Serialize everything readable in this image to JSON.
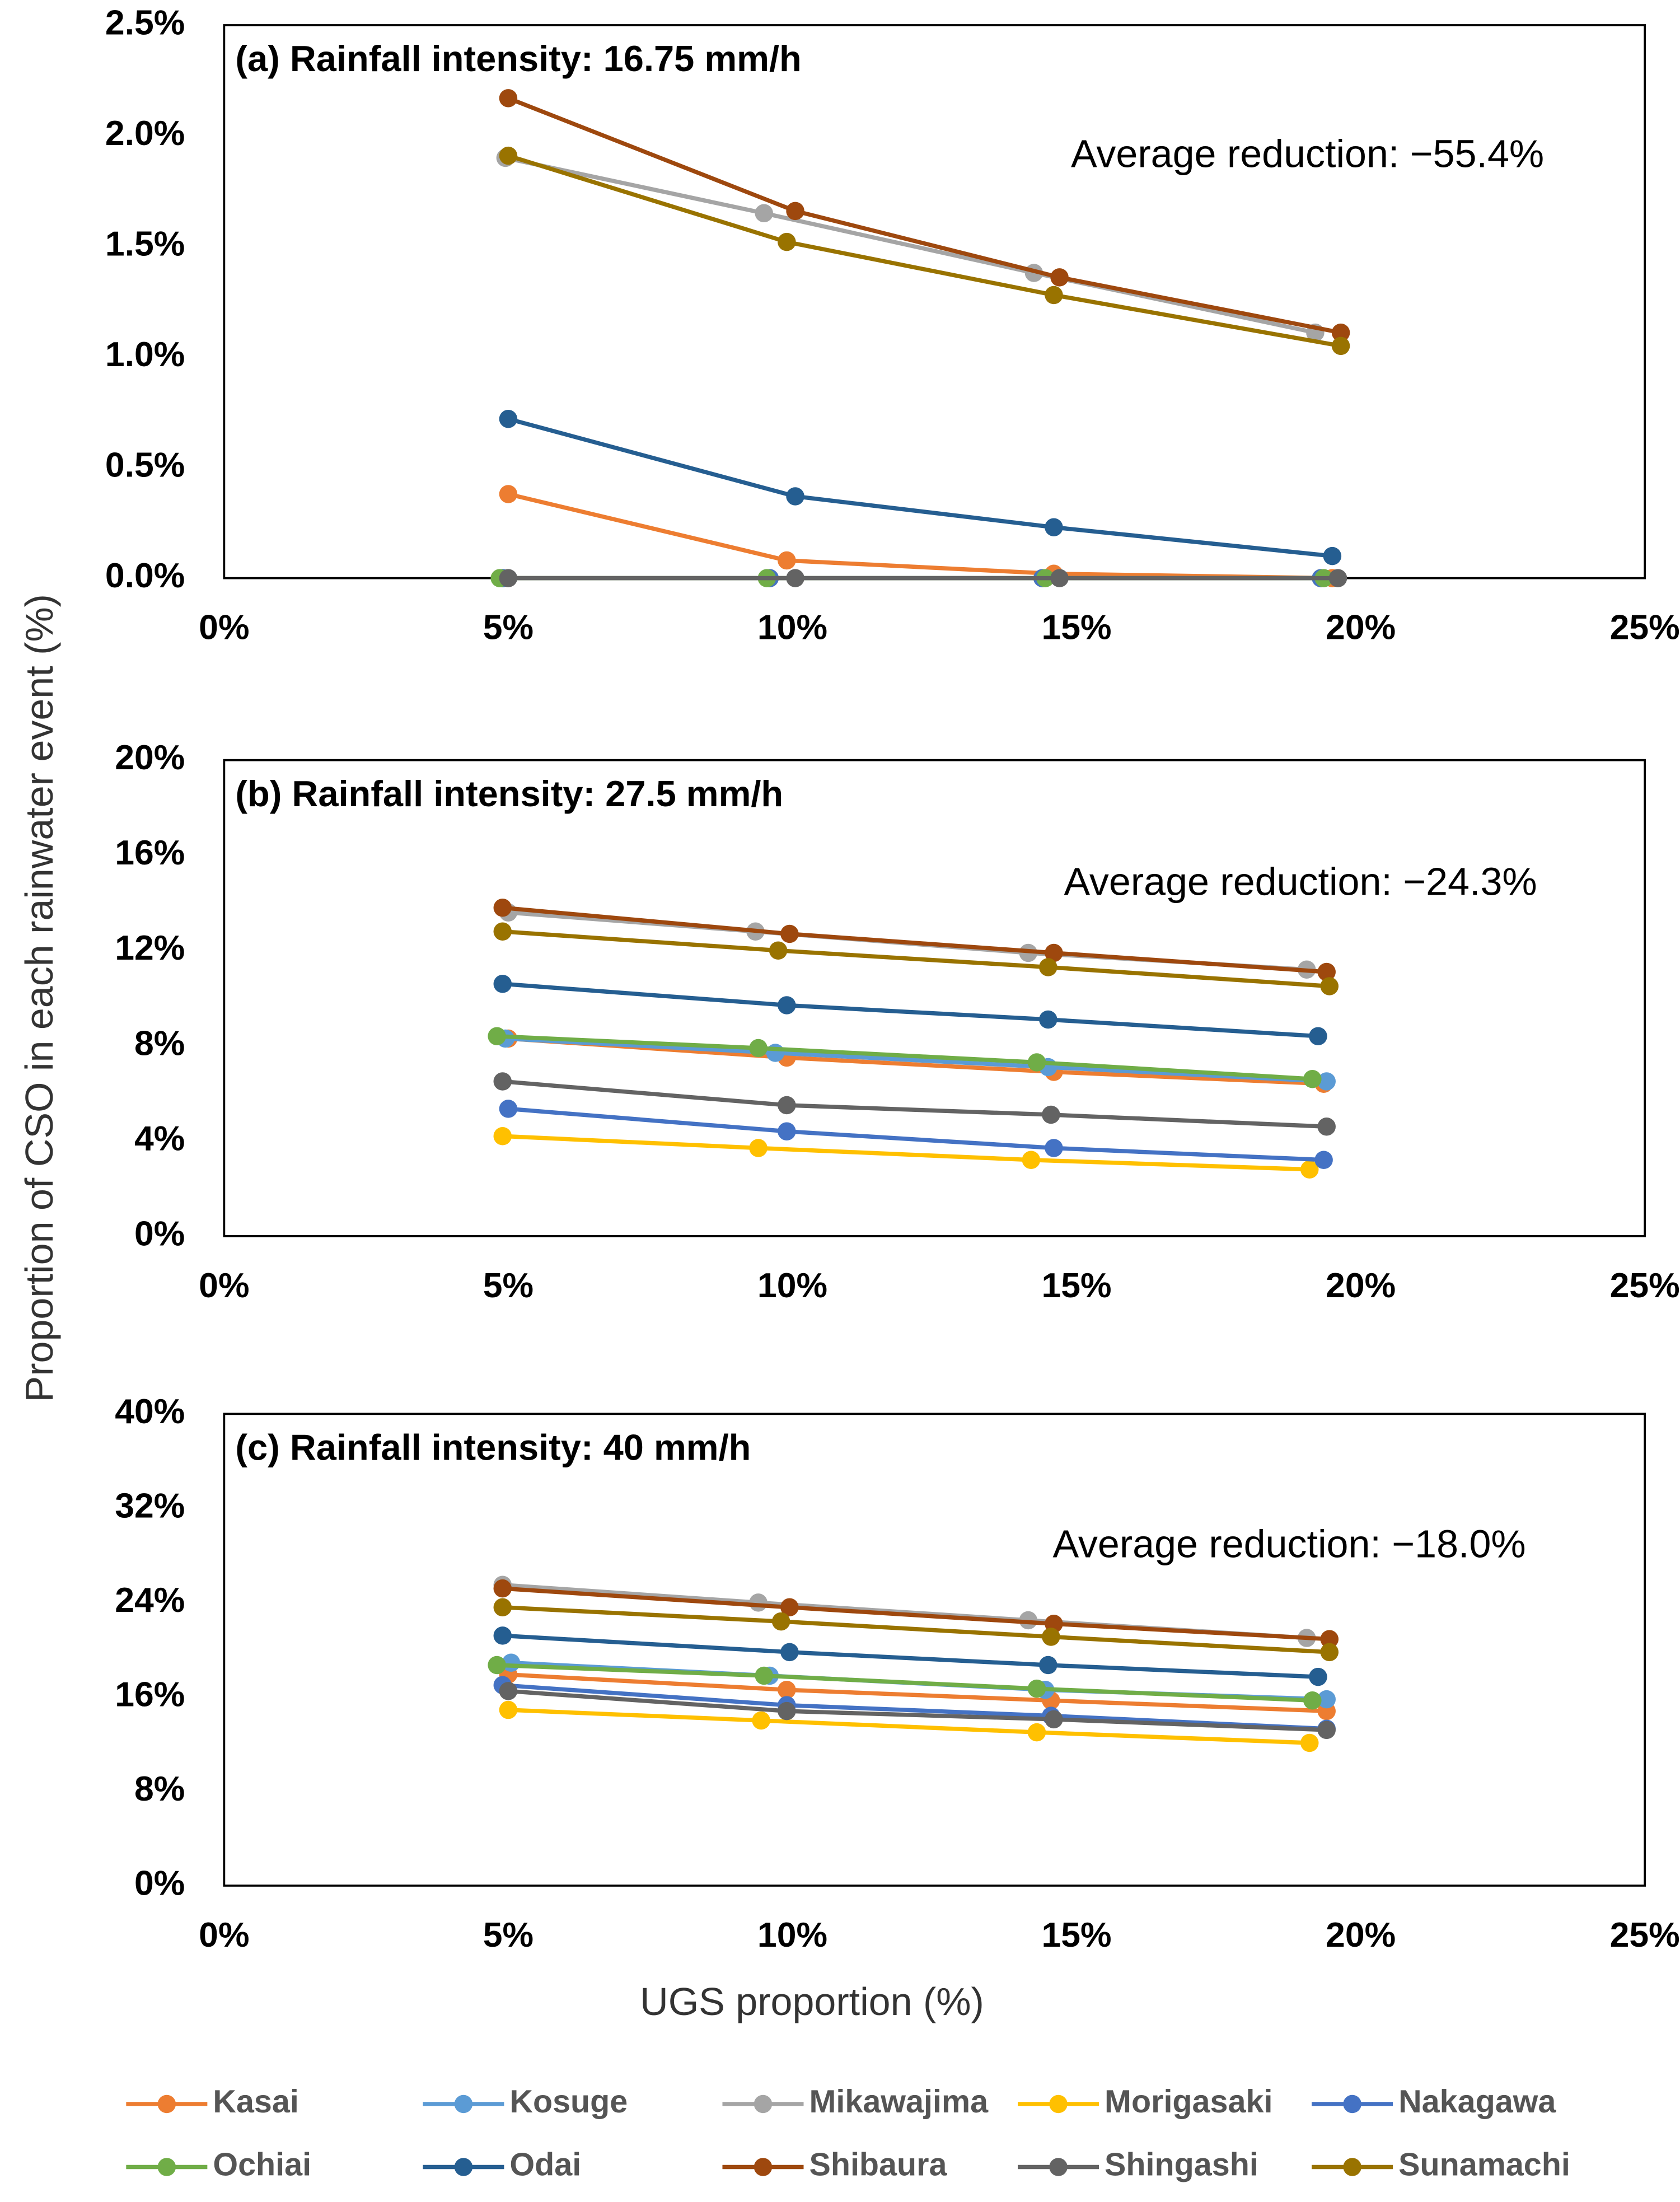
{
  "chart_data": [
    {
      "type": "line",
      "title": "(a) Rainfall intensity: 16.75 mm/h",
      "annotation": "Average reduction: −55.4%",
      "xlim": [
        0,
        25
      ],
      "xticks": [
        {
          "value": 0,
          "label": "0%"
        },
        {
          "value": 5,
          "label": "5%"
        },
        {
          "value": 10,
          "label": "10%"
        },
        {
          "value": 15,
          "label": "15%"
        },
        {
          "value": 20,
          "label": "20%"
        },
        {
          "value": 25,
          "label": "25%"
        }
      ],
      "ylim": [
        0,
        2.5
      ],
      "yticks": [
        {
          "value": 0,
          "label": "0.0%"
        },
        {
          "value": 0.5,
          "label": "0.5%"
        },
        {
          "value": 1,
          "label": "1.0%"
        },
        {
          "value": 1.5,
          "label": "1.5%"
        },
        {
          "value": 2,
          "label": "2.0%"
        },
        {
          "value": 2.5,
          "label": "2.5%"
        }
      ],
      "series": [
        {
          "color": "#ed7d31",
          "x": [
            5.0,
            9.9,
            14.6,
            19.5
          ],
          "values": [
            0.38,
            0.08,
            0.02,
            0.0
          ]
        },
        {
          "color": "#5b9bd5",
          "x": [
            4.9,
            9.6,
            14.4,
            19.3
          ],
          "values": [
            0,
            0,
            0,
            0
          ]
        },
        {
          "color": "#a5a5a5",
          "x": [
            4.95,
            9.5,
            14.25,
            19.2
          ],
          "values": [
            1.9,
            1.65,
            1.38,
            1.11
          ]
        },
        {
          "color": "#ffc000",
          "x": [
            4.9,
            9.6,
            14.4,
            19.3
          ],
          "values": [
            0,
            0,
            0,
            0
          ]
        },
        {
          "color": "#4472c4",
          "x": [
            4.9,
            9.6,
            14.4,
            19.3
          ],
          "values": [
            0,
            0,
            0,
            0
          ]
        },
        {
          "color": "#70ad47",
          "x": [
            4.85,
            9.55,
            14.45,
            19.35
          ],
          "values": [
            0,
            0,
            0,
            0
          ]
        },
        {
          "color": "#255e91",
          "x": [
            5.0,
            10.05,
            14.6,
            19.5
          ],
          "values": [
            0.72,
            0.37,
            0.23,
            0.1
          ]
        },
        {
          "color": "#9e480e",
          "x": [
            5.0,
            10.05,
            14.7,
            19.65
          ],
          "values": [
            2.17,
            1.66,
            1.36,
            1.11
          ]
        },
        {
          "color": "#636363",
          "x": [
            5.0,
            10.05,
            14.7,
            19.6
          ],
          "values": [
            0,
            0,
            0,
            0
          ]
        },
        {
          "color": "#997300",
          "x": [
            5.0,
            9.9,
            14.6,
            19.65
          ],
          "values": [
            1.91,
            1.52,
            1.28,
            1.05
          ]
        }
      ]
    },
    {
      "type": "line",
      "title": "(b) Rainfall intensity: 27.5 mm/h",
      "annotation": "Average reduction: −24.3%",
      "ylabel": "Proportion of CSO in each rainwater event (%)",
      "xlim": [
        0,
        25
      ],
      "xticks": [
        {
          "value": 0,
          "label": "0%"
        },
        {
          "value": 5,
          "label": "5%"
        },
        {
          "value": 10,
          "label": "10%"
        },
        {
          "value": 15,
          "label": "15%"
        },
        {
          "value": 20,
          "label": "20%"
        },
        {
          "value": 25,
          "label": "25%"
        }
      ],
      "ylim": [
        0,
        20
      ],
      "yticks": [
        {
          "value": 0,
          "label": "0%"
        },
        {
          "value": 4,
          "label": "4%"
        },
        {
          "value": 8,
          "label": "8%"
        },
        {
          "value": 12,
          "label": "12%"
        },
        {
          "value": 16,
          "label": "16%"
        },
        {
          "value": 20,
          "label": "20%"
        }
      ],
      "series": [
        {
          "color": "#ed7d31",
          "x": [
            5.0,
            9.9,
            14.6,
            19.35
          ],
          "values": [
            8.3,
            7.5,
            6.9,
            6.4
          ]
        },
        {
          "color": "#5b9bd5",
          "x": [
            4.95,
            9.7,
            14.5,
            19.4
          ],
          "values": [
            8.3,
            7.7,
            7.1,
            6.5
          ]
        },
        {
          "color": "#a5a5a5",
          "x": [
            5.0,
            9.35,
            14.15,
            19.05
          ],
          "values": [
            13.6,
            12.8,
            11.9,
            11.2
          ]
        },
        {
          "color": "#ffc000",
          "x": [
            4.9,
            9.4,
            14.2,
            19.1
          ],
          "values": [
            4.2,
            3.7,
            3.2,
            2.8
          ]
        },
        {
          "color": "#4472c4",
          "x": [
            5.0,
            9.9,
            14.6,
            19.35
          ],
          "values": [
            5.35,
            4.4,
            3.7,
            3.2
          ]
        },
        {
          "color": "#70ad47",
          "x": [
            4.8,
            9.4,
            14.3,
            19.15
          ],
          "values": [
            8.4,
            7.9,
            7.3,
            6.6
          ]
        },
        {
          "color": "#255e91",
          "x": [
            4.9,
            9.9,
            14.5,
            19.25
          ],
          "values": [
            10.6,
            9.7,
            9.1,
            8.4
          ]
        },
        {
          "color": "#9e480e",
          "x": [
            4.9,
            9.95,
            14.6,
            19.4
          ],
          "values": [
            13.8,
            12.7,
            11.9,
            11.1
          ]
        },
        {
          "color": "#636363",
          "x": [
            4.9,
            9.9,
            14.55,
            19.4
          ],
          "values": [
            6.5,
            5.5,
            5.1,
            4.6
          ]
        },
        {
          "color": "#997300",
          "x": [
            4.9,
            9.75,
            14.5,
            19.45
          ],
          "values": [
            12.8,
            12.0,
            11.3,
            10.5
          ]
        }
      ]
    },
    {
      "type": "line",
      "title": "(c) Rainfall intensity: 40 mm/h",
      "annotation": "Average reduction: −18.0%",
      "xlabel": "UGS proportion (%)",
      "legend": "bottom",
      "xlim": [
        0,
        25
      ],
      "xticks": [
        {
          "value": 0,
          "label": "0%"
        },
        {
          "value": 5,
          "label": "5%"
        },
        {
          "value": 10,
          "label": "10%"
        },
        {
          "value": 15,
          "label": "15%"
        },
        {
          "value": 20,
          "label": "20%"
        },
        {
          "value": 25,
          "label": "25%"
        }
      ],
      "ylim": [
        0,
        40
      ],
      "yticks": [
        {
          "value": 0,
          "label": "0%"
        },
        {
          "value": 8,
          "label": "8%"
        },
        {
          "value": 16,
          "label": "16%"
        },
        {
          "value": 24,
          "label": "24%"
        },
        {
          "value": 32,
          "label": "32%"
        },
        {
          "value": 40,
          "label": "40%"
        }
      ],
      "series": [
        {
          "name": "Kasai",
          "color": "#ed7d31",
          "x": [
            5.0,
            9.9,
            14.55,
            19.4
          ],
          "values": [
            17.9,
            16.6,
            15.7,
            14.8
          ]
        },
        {
          "name": "Kosuge",
          "color": "#5b9bd5",
          "x": [
            5.05,
            9.6,
            14.45,
            19.4
          ],
          "values": [
            18.9,
            17.8,
            16.6,
            15.8
          ]
        },
        {
          "name": "Mikawajima",
          "color": "#a5a5a5",
          "x": [
            4.9,
            9.4,
            14.15,
            19.05
          ],
          "values": [
            25.5,
            24.0,
            22.5,
            21.0
          ]
        },
        {
          "name": "Morigasaki",
          "color": "#ffc000",
          "x": [
            5.0,
            9.45,
            14.3,
            19.1
          ],
          "values": [
            14.9,
            14.0,
            13.0,
            12.1
          ]
        },
        {
          "name": "Nakagawa",
          "color": "#4472c4",
          "x": [
            4.9,
            9.9,
            14.55,
            19.4
          ],
          "values": [
            17.0,
            15.3,
            14.4,
            13.3
          ]
        },
        {
          "name": "Ochiai",
          "color": "#70ad47",
          "x": [
            4.8,
            9.5,
            14.3,
            19.15
          ],
          "values": [
            18.7,
            17.8,
            16.7,
            15.7
          ]
        },
        {
          "name": "Odai",
          "color": "#255e91",
          "x": [
            4.9,
            9.95,
            14.5,
            19.25
          ],
          "values": [
            21.2,
            19.8,
            18.7,
            17.7
          ]
        },
        {
          "name": "Shibaura",
          "color": "#9e480e",
          "x": [
            4.9,
            9.95,
            14.6,
            19.45
          ],
          "values": [
            25.2,
            23.6,
            22.2,
            20.9
          ]
        },
        {
          "name": "Shingashi",
          "color": "#636363",
          "x": [
            5.0,
            9.9,
            14.6,
            19.4
          ],
          "values": [
            16.5,
            14.8,
            14.1,
            13.2
          ]
        },
        {
          "name": "Sunamachi",
          "color": "#997300",
          "x": [
            4.9,
            9.8,
            14.55,
            19.45
          ],
          "values": [
            23.6,
            22.4,
            21.1,
            19.8
          ]
        }
      ]
    }
  ]
}
